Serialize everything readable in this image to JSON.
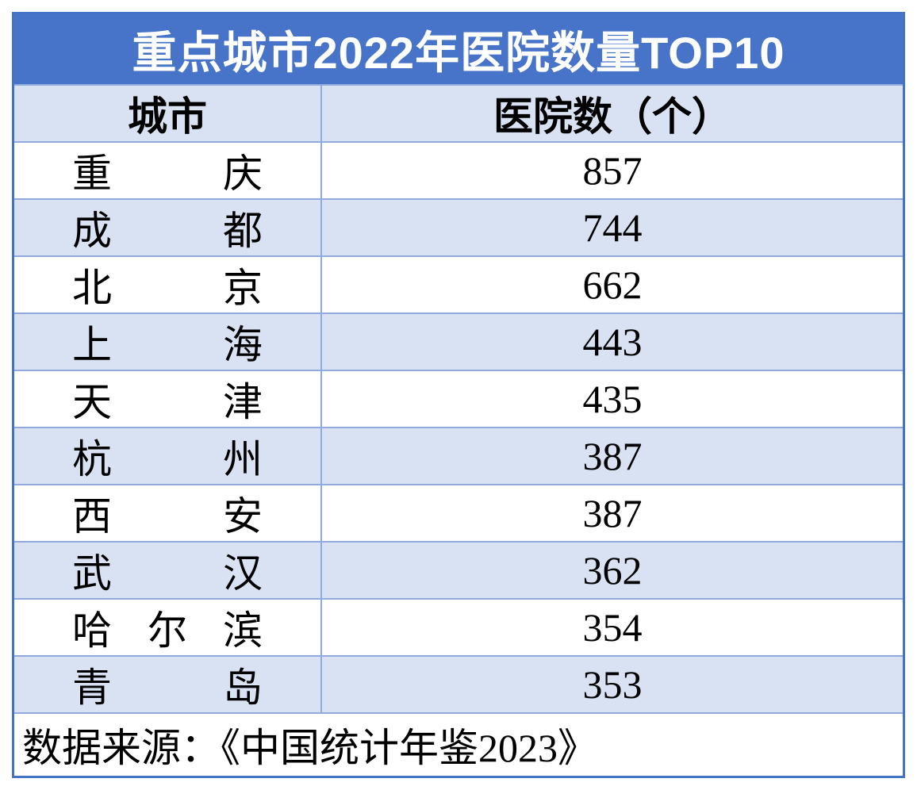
{
  "title": "重点城市2022年医院数量TOP10",
  "table": {
    "columns": {
      "city": "城市",
      "hospitals": "医院数（个）"
    },
    "rows": [
      {
        "city": "重庆",
        "hospitals": "857"
      },
      {
        "city": "成都",
        "hospitals": "744"
      },
      {
        "city": "北京",
        "hospitals": "662"
      },
      {
        "city": "上海",
        "hospitals": "443"
      },
      {
        "city": "天津",
        "hospitals": "435"
      },
      {
        "city": "杭州",
        "hospitals": "387"
      },
      {
        "city": "西安",
        "hospitals": "387"
      },
      {
        "city": "武汉",
        "hospitals": "362"
      },
      {
        "city": "哈尔滨",
        "hospitals": "354"
      },
      {
        "city": "青岛",
        "hospitals": "353"
      }
    ]
  },
  "footer": {
    "source": "数据来源：《中国统计年鉴2023》"
  },
  "colors": {
    "title_bg": "#4774C9",
    "title_text": "#FFFFFF",
    "band_fill": "#D9E2F3",
    "grid_line": "#8FAADC",
    "outer_border": "#4472C4",
    "body_text": "#000000"
  },
  "chart_data": {
    "type": "table",
    "title": "重点城市2022年医院数量TOP10",
    "columns": [
      "城市",
      "医院数（个）"
    ],
    "categories": [
      "重庆",
      "成都",
      "北京",
      "上海",
      "天津",
      "杭州",
      "西安",
      "武汉",
      "哈尔滨",
      "青岛"
    ],
    "values": [
      857,
      744,
      662,
      443,
      435,
      387,
      387,
      362,
      354,
      353
    ],
    "source_note": "数据来源：《中国统计年鉴2023》",
    "layout": {
      "banded_rows": true,
      "value_alignment": "center",
      "city_alignment": "distributed"
    }
  }
}
